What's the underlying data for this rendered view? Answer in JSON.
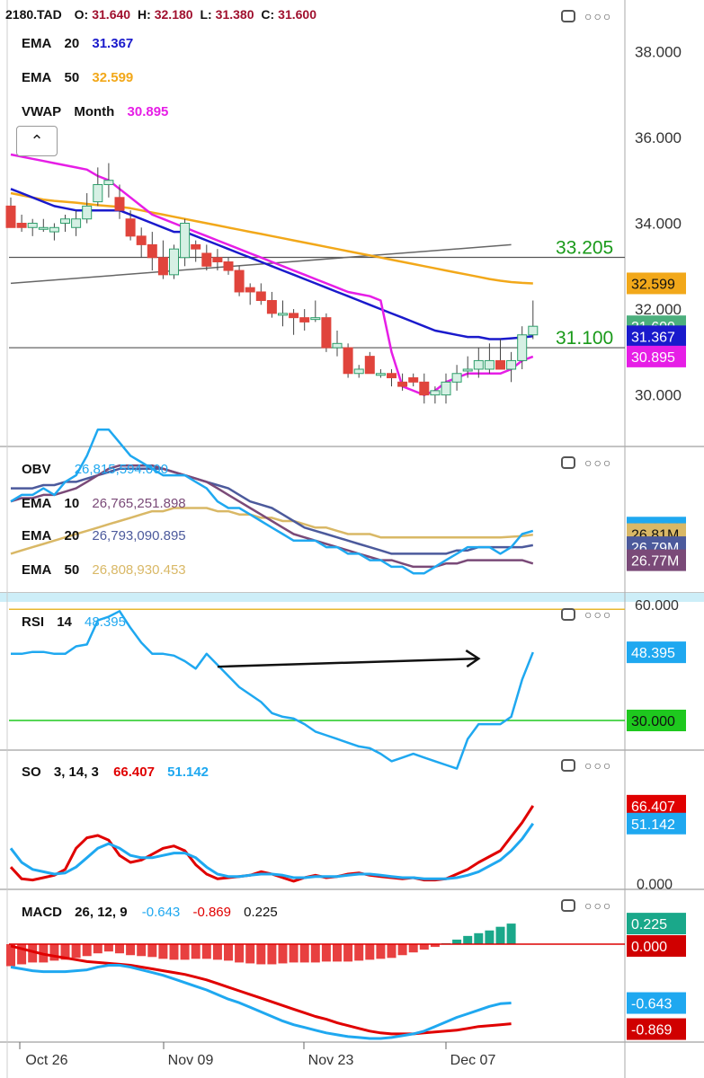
{
  "colors": {
    "candle_up": "#2e9e6b",
    "candle_down": "#e0443c",
    "ema20": "#1a1acc",
    "ema50": "#f2a81a",
    "vwap": "#e61ee6",
    "obv": "#1fa8f0",
    "obv_ema10": "#7a4a78",
    "obv_ema20": "#4c5a9c",
    "obv_ema50": "#d9b866",
    "rsi": "#1fa8f0",
    "rsi_upper": "#e8b830",
    "rsi_lower": "#1ec81e",
    "so_k": "#e00000",
    "so_d": "#1fa8f0",
    "macd": "#1fa8f0",
    "macd_signal": "#e00000",
    "hist_pos": "#1aa88a",
    "hist_neg": "#e84040",
    "hline": "#555555"
  },
  "main": {
    "ticker": "2180.TAD",
    "o_label": "O:",
    "o": "31.640",
    "h_label": "H:",
    "h": "32.180",
    "l_label": "L:",
    "l": "31.380",
    "c_label": "C:",
    "c": "31.600",
    "ema20_label": "EMA",
    "ema20_period": "20",
    "ema20_value": "31.367",
    "ema50_label": "EMA",
    "ema50_period": "50",
    "ema50_value": "32.599",
    "vwap_label": "VWAP",
    "vwap_period": "Month",
    "vwap_value": "30.895",
    "collapse_icon": "chevron-up-icon"
  },
  "obv": {
    "label": "OBV",
    "value": "26,815,594.000",
    "ema10_label": "EMA",
    "ema10_period": "10",
    "ema10_value": "26,765,251.898",
    "ema20_label": "EMA",
    "ema20_period": "20",
    "ema20_value": "26,793,090.895",
    "ema50_label": "EMA",
    "ema50_period": "50",
    "ema50_value": "26,808,930.453"
  },
  "rsi": {
    "label": "RSI",
    "period": "14",
    "value": "48.395"
  },
  "so": {
    "label": "SO",
    "params": "3, 14, 3",
    "k_value": "66.407",
    "d_value": "51.142"
  },
  "macd": {
    "label": "MACD",
    "params": "26, 12, 9",
    "macd_value": "-0.643",
    "signal_value": "-0.869",
    "hist_value": "0.225"
  },
  "toolbar_icons": [
    "window-icon",
    "more-icon"
  ],
  "chart_data": [
    {
      "type": "candlestick",
      "name": "2180.TAD",
      "x_ticks": [
        "Oct 26",
        "Nov 09",
        "Nov 23",
        "Dec 07"
      ],
      "y_ticks": [
        "30.000",
        "32.000",
        "34.000",
        "36.000",
        "38.000"
      ],
      "ylim": [
        28.8,
        39.2
      ],
      "candles": [
        {
          "o": 34.4,
          "h": 34.6,
          "l": 33.9,
          "c": 33.9
        },
        {
          "o": 34.0,
          "h": 34.2,
          "l": 33.8,
          "c": 33.9
        },
        {
          "o": 33.9,
          "h": 34.1,
          "l": 33.7,
          "c": 34.0
        },
        {
          "o": 33.9,
          "h": 34.1,
          "l": 33.8,
          "c": 33.9
        },
        {
          "o": 33.8,
          "h": 34.0,
          "l": 33.6,
          "c": 33.9
        },
        {
          "o": 34.0,
          "h": 34.2,
          "l": 33.8,
          "c": 34.1
        },
        {
          "o": 33.9,
          "h": 34.3,
          "l": 33.7,
          "c": 34.1
        },
        {
          "o": 34.1,
          "h": 34.7,
          "l": 34.0,
          "c": 34.4
        },
        {
          "o": 34.5,
          "h": 35.3,
          "l": 34.4,
          "c": 34.9
        },
        {
          "o": 34.9,
          "h": 35.4,
          "l": 34.6,
          "c": 35.0
        },
        {
          "o": 34.6,
          "h": 34.9,
          "l": 34.1,
          "c": 34.3
        },
        {
          "o": 34.1,
          "h": 34.3,
          "l": 33.6,
          "c": 33.7
        },
        {
          "o": 33.7,
          "h": 33.9,
          "l": 33.2,
          "c": 33.5
        },
        {
          "o": 33.5,
          "h": 33.8,
          "l": 32.9,
          "c": 33.2
        },
        {
          "o": 33.2,
          "h": 33.6,
          "l": 32.7,
          "c": 32.8
        },
        {
          "o": 32.8,
          "h": 33.5,
          "l": 32.7,
          "c": 33.4
        },
        {
          "o": 33.2,
          "h": 34.1,
          "l": 33.0,
          "c": 34.0
        },
        {
          "o": 33.5,
          "h": 33.6,
          "l": 33.1,
          "c": 33.4
        },
        {
          "o": 33.3,
          "h": 33.5,
          "l": 32.9,
          "c": 33.0
        },
        {
          "o": 33.2,
          "h": 33.4,
          "l": 32.9,
          "c": 33.1
        },
        {
          "o": 33.1,
          "h": 33.2,
          "l": 32.8,
          "c": 32.9
        },
        {
          "o": 32.9,
          "h": 33.0,
          "l": 32.3,
          "c": 32.4
        },
        {
          "o": 32.5,
          "h": 32.6,
          "l": 32.1,
          "c": 32.4
        },
        {
          "o": 32.4,
          "h": 32.6,
          "l": 32.1,
          "c": 32.2
        },
        {
          "o": 32.2,
          "h": 32.4,
          "l": 31.8,
          "c": 31.9
        },
        {
          "o": 31.9,
          "h": 32.2,
          "l": 31.6,
          "c": 31.9
        },
        {
          "o": 31.9,
          "h": 32.0,
          "l": 31.4,
          "c": 31.8
        },
        {
          "o": 31.8,
          "h": 32.0,
          "l": 31.5,
          "c": 31.7
        },
        {
          "o": 31.8,
          "h": 32.2,
          "l": 31.7,
          "c": 31.8
        },
        {
          "o": 31.8,
          "h": 31.9,
          "l": 31.0,
          "c": 31.1
        },
        {
          "o": 31.1,
          "h": 31.5,
          "l": 30.9,
          "c": 31.2
        },
        {
          "o": 31.1,
          "h": 31.2,
          "l": 30.4,
          "c": 30.5
        },
        {
          "o": 30.5,
          "h": 30.7,
          "l": 30.4,
          "c": 30.6
        },
        {
          "o": 30.9,
          "h": 31.0,
          "l": 30.5,
          "c": 30.5
        },
        {
          "o": 30.5,
          "h": 30.6,
          "l": 30.4,
          "c": 30.5
        },
        {
          "o": 30.5,
          "h": 30.6,
          "l": 30.2,
          "c": 30.4
        },
        {
          "o": 30.3,
          "h": 30.5,
          "l": 30.1,
          "c": 30.2
        },
        {
          "o": 30.4,
          "h": 30.5,
          "l": 30.2,
          "c": 30.3
        },
        {
          "o": 30.3,
          "h": 30.5,
          "l": 29.8,
          "c": 30.0
        },
        {
          "o": 30.0,
          "h": 30.2,
          "l": 29.8,
          "c": 30.1
        },
        {
          "o": 30.0,
          "h": 30.5,
          "l": 29.8,
          "c": 30.3
        },
        {
          "o": 30.3,
          "h": 30.7,
          "l": 30.1,
          "c": 30.5
        },
        {
          "o": 30.6,
          "h": 30.9,
          "l": 30.4,
          "c": 30.6
        },
        {
          "o": 30.6,
          "h": 31.1,
          "l": 30.4,
          "c": 30.8
        },
        {
          "o": 30.6,
          "h": 31.2,
          "l": 30.5,
          "c": 30.8
        },
        {
          "o": 30.8,
          "h": 31.3,
          "l": 30.7,
          "c": 30.6
        },
        {
          "o": 30.6,
          "h": 31.0,
          "l": 30.3,
          "c": 30.8
        },
        {
          "o": 30.8,
          "h": 31.6,
          "l": 30.6,
          "c": 31.4
        },
        {
          "o": 31.4,
          "h": 32.2,
          "l": 31.3,
          "c": 31.6
        }
      ],
      "ema20": [
        34.8,
        34.7,
        34.6,
        34.5,
        34.4,
        34.35,
        34.3,
        34.3,
        34.3,
        34.3,
        34.3,
        34.2,
        34.1,
        34.0,
        33.9,
        33.8,
        33.8,
        33.7,
        33.6,
        33.5,
        33.4,
        33.3,
        33.2,
        33.1,
        33.0,
        32.9,
        32.8,
        32.7,
        32.6,
        32.5,
        32.4,
        32.3,
        32.2,
        32.1,
        32.0,
        31.9,
        31.8,
        31.7,
        31.6,
        31.5,
        31.45,
        31.4,
        31.35,
        31.35,
        31.3,
        31.3,
        31.32,
        31.34,
        31.367
      ],
      "ema50": [
        34.7,
        34.65,
        34.6,
        34.55,
        34.52,
        34.5,
        34.48,
        34.45,
        34.42,
        34.4,
        34.38,
        34.35,
        34.3,
        34.25,
        34.2,
        34.15,
        34.1,
        34.05,
        34.0,
        33.95,
        33.9,
        33.85,
        33.8,
        33.75,
        33.7,
        33.65,
        33.6,
        33.55,
        33.5,
        33.45,
        33.4,
        33.35,
        33.3,
        33.25,
        33.2,
        33.15,
        33.1,
        33.05,
        33.0,
        32.95,
        32.9,
        32.85,
        32.8,
        32.75,
        32.7,
        32.66,
        32.63,
        32.61,
        32.599
      ],
      "vwap": [
        35.6,
        35.55,
        35.5,
        35.45,
        35.4,
        35.35,
        35.3,
        35.25,
        35.1,
        35.0,
        34.8,
        34.6,
        34.4,
        34.2,
        34.1,
        34.0,
        33.9,
        33.8,
        33.7,
        33.6,
        33.5,
        33.4,
        33.3,
        33.2,
        33.1,
        33.0,
        32.9,
        32.8,
        32.7,
        32.6,
        32.5,
        32.4,
        32.35,
        32.3,
        32.2,
        31.0,
        30.2,
        30.1,
        30.0,
        30.1,
        30.3,
        30.4,
        30.5,
        30.5,
        30.5,
        30.5,
        30.6,
        30.8,
        30.895
      ],
      "hlines": [
        {
          "value": 33.205,
          "label": "33.205"
        },
        {
          "value": 31.1,
          "label": "31.100"
        }
      ],
      "trendline": [
        32.6,
        33.5
      ],
      "price_tags": [
        {
          "value": 32.599,
          "label": "32.599"
        },
        {
          "value": 31.6,
          "label": "31.600"
        },
        {
          "value": 31.367,
          "label": "31.367"
        },
        {
          "value": 30.895,
          "label": "30.895"
        }
      ]
    },
    {
      "type": "line",
      "name": "OBV",
      "ylim": [
        26.72,
        26.94
      ],
      "price_tags": [
        {
          "value": 26.82,
          "label": "26.82M"
        },
        {
          "value": 26.81,
          "label": "26.81M"
        },
        {
          "value": 26.79,
          "label": "26.79M"
        },
        {
          "value": 26.77,
          "label": "26.77M"
        }
      ],
      "obv": [
        26.86,
        26.87,
        26.87,
        26.88,
        26.87,
        26.89,
        26.9,
        26.93,
        26.97,
        26.97,
        26.95,
        26.93,
        26.92,
        26.91,
        26.9,
        26.9,
        26.9,
        26.89,
        26.88,
        26.86,
        26.85,
        26.85,
        26.84,
        26.83,
        26.82,
        26.81,
        26.8,
        26.8,
        26.8,
        26.79,
        26.79,
        26.78,
        26.78,
        26.77,
        26.77,
        26.76,
        26.76,
        26.75,
        26.75,
        26.76,
        26.77,
        26.78,
        26.79,
        26.79,
        26.79,
        26.78,
        26.79,
        26.81,
        26.815
      ],
      "ema10": [
        26.86,
        26.865,
        26.865,
        26.87,
        26.87,
        26.875,
        26.88,
        26.89,
        26.9,
        26.91,
        26.915,
        26.915,
        26.915,
        26.915,
        26.91,
        26.905,
        26.9,
        26.895,
        26.89,
        26.88,
        26.87,
        26.86,
        26.85,
        26.84,
        26.83,
        26.82,
        26.81,
        26.805,
        26.8,
        26.795,
        26.79,
        26.785,
        26.78,
        26.775,
        26.77,
        26.77,
        26.765,
        26.76,
        26.76,
        26.76,
        26.765,
        26.765,
        26.77,
        26.77,
        26.77,
        26.77,
        26.77,
        26.77,
        26.765
      ],
      "ema20": [
        26.88,
        26.88,
        26.88,
        26.885,
        26.885,
        26.89,
        26.89,
        26.895,
        26.9,
        26.905,
        26.91,
        26.91,
        26.91,
        26.91,
        26.91,
        26.905,
        26.9,
        26.895,
        26.89,
        26.885,
        26.88,
        26.87,
        26.86,
        26.855,
        26.85,
        26.84,
        26.83,
        26.82,
        26.815,
        26.81,
        26.805,
        26.8,
        26.795,
        26.79,
        26.785,
        26.78,
        26.78,
        26.78,
        26.78,
        26.78,
        26.78,
        26.785,
        26.785,
        26.79,
        26.79,
        26.79,
        26.79,
        26.79,
        26.793
      ],
      "ema50": [
        26.78,
        26.785,
        26.79,
        26.795,
        26.8,
        26.805,
        26.81,
        26.815,
        26.82,
        26.825,
        26.83,
        26.835,
        26.84,
        26.845,
        26.845,
        26.85,
        26.85,
        26.85,
        26.85,
        26.845,
        26.845,
        26.84,
        26.84,
        26.835,
        26.835,
        26.83,
        26.83,
        26.825,
        26.82,
        26.82,
        26.815,
        26.81,
        26.81,
        26.81,
        26.805,
        26.805,
        26.805,
        26.805,
        26.805,
        26.805,
        26.805,
        26.805,
        26.805,
        26.805,
        26.805,
        26.805,
        26.806,
        26.807,
        26.809
      ]
    },
    {
      "type": "line",
      "name": "RSI",
      "ylim": [
        22,
        62
      ],
      "levels": [
        {
          "value": 60,
          "label": "60.000"
        },
        {
          "value": 30,
          "label": "30.000"
        }
      ],
      "price_tags": [
        {
          "value": 48.395,
          "label": "48.395"
        },
        {
          "value": 30,
          "label": "30.000"
        }
      ],
      "rsi": [
        48,
        48,
        48.5,
        48.5,
        48,
        48,
        50,
        50.5,
        57,
        58,
        59.5,
        55,
        51,
        48,
        48,
        47.5,
        46,
        44,
        48,
        45,
        42,
        39,
        37,
        35,
        32,
        31,
        30.5,
        29,
        27,
        26,
        25,
        24,
        23,
        22.5,
        21,
        19,
        20,
        21,
        20,
        19,
        18,
        17,
        25,
        29,
        29,
        29,
        31,
        41,
        48.4
      ],
      "trend_arrow": {
        "from_index": 19,
        "to_index": 43,
        "from_value": 44.5,
        "to_value": 46.7
      }
    },
    {
      "type": "line",
      "name": "SO",
      "ylim": [
        -5,
        110
      ],
      "price_tags": [
        {
          "value": 66.407,
          "label": "66.407"
        },
        {
          "value": 51.142,
          "label": "51.142"
        },
        {
          "value": 0,
          "label": "0.000"
        }
      ],
      "k": [
        14,
        4,
        3,
        5,
        7,
        12,
        30,
        39,
        41,
        37,
        24,
        18,
        20,
        25,
        30,
        32,
        28,
        16,
        8,
        4,
        5,
        6,
        7,
        10,
        8,
        5,
        2,
        5,
        7,
        5,
        6,
        8,
        9,
        7,
        6,
        5,
        4,
        5,
        3,
        3,
        4,
        8,
        12,
        18,
        23,
        28,
        40,
        52,
        66.4
      ],
      "d": [
        30,
        18,
        12,
        10,
        8,
        9,
        14,
        22,
        30,
        34,
        30,
        24,
        22,
        22,
        24,
        26,
        26,
        22,
        14,
        8,
        6,
        6,
        7,
        8,
        8,
        7,
        5,
        5,
        6,
        6,
        6,
        7,
        8,
        8,
        7,
        6,
        5,
        5,
        4,
        4,
        4,
        5,
        7,
        10,
        15,
        20,
        28,
        38,
        51.1
      ]
    },
    {
      "type": "bar+line",
      "name": "MACD",
      "ylim": [
        -1.05,
        0.55
      ],
      "price_tags": [
        {
          "value": 0.225,
          "label": "0.225"
        },
        {
          "value": 0,
          "label": "0.000"
        },
        {
          "value": -0.643,
          "label": "-0.643"
        },
        {
          "value": -0.869,
          "label": "-0.869"
        }
      ],
      "hist": [
        -0.24,
        -0.22,
        -0.2,
        -0.2,
        -0.18,
        -0.17,
        -0.15,
        -0.13,
        -0.1,
        -0.08,
        -0.1,
        -0.12,
        -0.13,
        -0.14,
        -0.16,
        -0.17,
        -0.17,
        -0.16,
        -0.16,
        -0.17,
        -0.18,
        -0.2,
        -0.21,
        -0.22,
        -0.22,
        -0.21,
        -0.2,
        -0.2,
        -0.2,
        -0.19,
        -0.19,
        -0.19,
        -0.18,
        -0.17,
        -0.16,
        -0.15,
        -0.12,
        -0.09,
        -0.06,
        -0.03,
        0.01,
        0.05,
        0.09,
        0.12,
        0.15,
        0.19,
        0.225
      ],
      "macd": [
        -0.25,
        -0.27,
        -0.29,
        -0.3,
        -0.3,
        -0.3,
        -0.29,
        -0.28,
        -0.25,
        -0.23,
        -0.23,
        -0.25,
        -0.28,
        -0.31,
        -0.34,
        -0.38,
        -0.42,
        -0.46,
        -0.5,
        -0.55,
        -0.6,
        -0.64,
        -0.69,
        -0.74,
        -0.79,
        -0.84,
        -0.88,
        -0.91,
        -0.94,
        -0.97,
        -0.99,
        -1.01,
        -1.02,
        -1.03,
        -1.03,
        -1.02,
        -1.0,
        -0.98,
        -0.95,
        -0.9,
        -0.85,
        -0.8,
        -0.76,
        -0.72,
        -0.68,
        -0.65,
        -0.643
      ],
      "signal": [
        -0.02,
        -0.05,
        -0.08,
        -0.11,
        -0.13,
        -0.15,
        -0.17,
        -0.19,
        -0.2,
        -0.21,
        -0.22,
        -0.23,
        -0.25,
        -0.27,
        -0.29,
        -0.31,
        -0.33,
        -0.36,
        -0.39,
        -0.43,
        -0.47,
        -0.51,
        -0.55,
        -0.59,
        -0.63,
        -0.67,
        -0.71,
        -0.75,
        -0.79,
        -0.82,
        -0.86,
        -0.89,
        -0.92,
        -0.95,
        -0.97,
        -0.98,
        -0.98,
        -0.98,
        -0.97,
        -0.96,
        -0.95,
        -0.94,
        -0.92,
        -0.9,
        -0.89,
        -0.88,
        -0.869
      ]
    }
  ]
}
